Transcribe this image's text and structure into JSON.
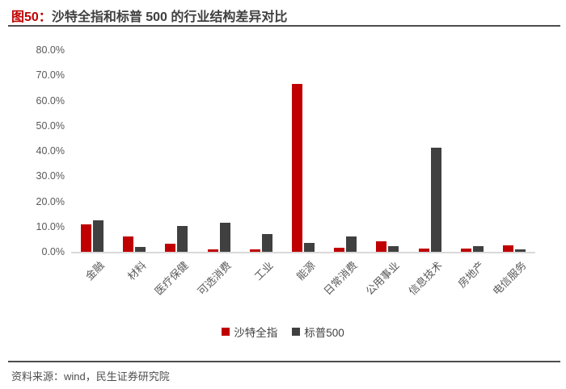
{
  "header": {
    "title_prefix": "图50：",
    "title_text": "沙特全指和标普 500 的行业结构差异对比"
  },
  "chart_data": {
    "type": "bar",
    "title": "沙特全指和标普 500 的行业结构差异对比",
    "categories": [
      "金融",
      "材料",
      "医疗保健",
      "可选消费",
      "工业",
      "能源",
      "日常消费",
      "公用事业",
      "信息技术",
      "房地产",
      "电信服务"
    ],
    "series": [
      {
        "id": "saudi",
        "name": "沙特全指",
        "color": "#C00000",
        "values": [
          10.8,
          6.2,
          3.3,
          1.1,
          1.1,
          66.5,
          1.6,
          4.1,
          1.2,
          1.3,
          2.6
        ]
      },
      {
        "id": "sp500",
        "name": "标普500",
        "color": "#404040",
        "values": [
          12.6,
          1.9,
          10.2,
          11.4,
          6.9,
          3.4,
          6.0,
          2.3,
          41.4,
          2.1,
          1.0
        ]
      }
    ],
    "xlabel": "",
    "ylabel": "",
    "ylim": [
      0,
      80
    ],
    "yticks": [
      "0.0%",
      "10.0%",
      "20.0%",
      "30.0%",
      "40.0%",
      "50.0%",
      "60.0%",
      "70.0%",
      "80.0%"
    ],
    "grid": false,
    "legend_position": "bottom",
    "value_unit": "percent"
  },
  "footer": {
    "source": "资料来源：wind，民生证券研究院"
  },
  "colors": {
    "accent_red": "#C00000",
    "bar_gray": "#404040",
    "axis_text": "#595959",
    "rule": "#4d4d4d",
    "baseline": "#d9d9d9"
  }
}
